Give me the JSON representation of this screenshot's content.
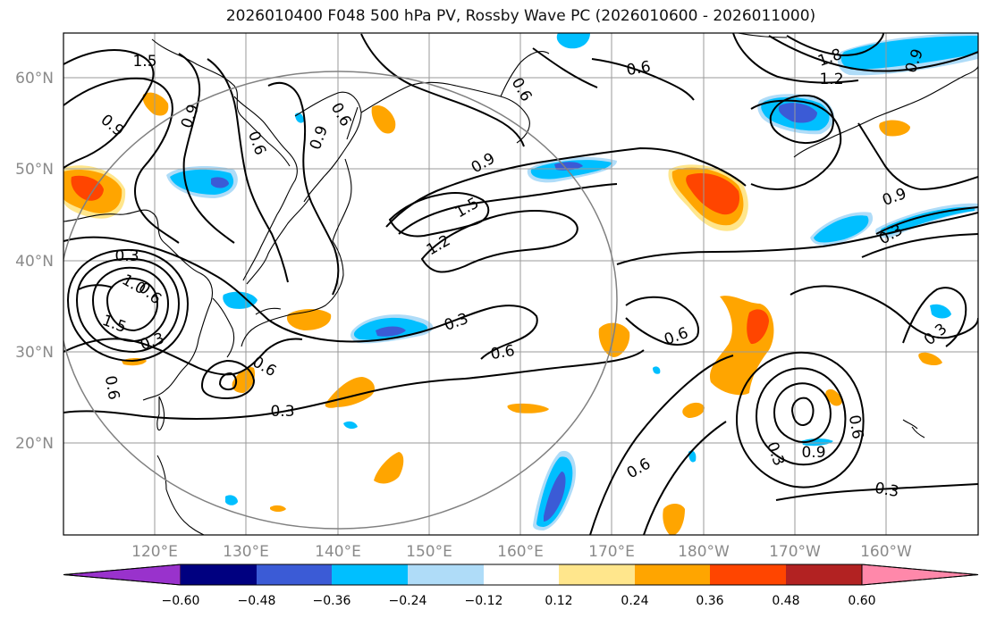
{
  "title": "2026010400 F048 500 hPa PV, Rossby Wave PC (2026010600 - 2026011000)",
  "colors": {
    "coast": "#000000",
    "grid": "#9a9a9a",
    "contour": "#000000",
    "circle": "#808080"
  },
  "map": {
    "lon_labels": [
      "120°E",
      "130°E",
      "140°E",
      "150°E",
      "160°E",
      "170°E",
      "180°W",
      "170°W",
      "160°W"
    ],
    "lat_labels": [
      "60°N",
      "50°N",
      "40°N",
      "30°N",
      "20°N"
    ]
  },
  "contour_labels": [
    {
      "text": "1.5"
    },
    {
      "text": "0.9"
    },
    {
      "text": "0.9"
    },
    {
      "text": "0.6"
    },
    {
      "text": "0.6"
    },
    {
      "text": "0.9"
    },
    {
      "text": "0.6"
    },
    {
      "text": "0.6"
    },
    {
      "text": "0.9"
    },
    {
      "text": "1.5"
    },
    {
      "text": "1.2"
    },
    {
      "text": "0.3"
    },
    {
      "text": "1.0"
    },
    {
      "text": "0.6"
    },
    {
      "text": "1.5"
    },
    {
      "text": "0.3"
    },
    {
      "text": "0.6"
    },
    {
      "text": "0.6"
    },
    {
      "text": "0.3"
    },
    {
      "text": "0.3"
    },
    {
      "text": "0.6"
    },
    {
      "text": "0.6"
    },
    {
      "text": "0.9"
    },
    {
      "text": "0.3"
    },
    {
      "text": "0.3"
    },
    {
      "text": "0.9"
    },
    {
      "text": "0.6"
    },
    {
      "text": "0.3"
    },
    {
      "text": "0.3"
    },
    {
      "text": "0.6"
    },
    {
      "text": "1.8"
    },
    {
      "text": "1.2"
    },
    {
      "text": "0.9"
    }
  ],
  "colorbar": {
    "colors": [
      "#9932cc",
      "#000080",
      "#3b5bd6",
      "#00bfff",
      "#afdcf8",
      "#ffffff",
      "#ffe68c",
      "#ffa500",
      "#ff4500",
      "#b22222",
      "#ff88aa"
    ],
    "labels": [
      "−0.60",
      "−0.48",
      "−0.36",
      "−0.24",
      "−0.12",
      "0.12",
      "0.24",
      "0.36",
      "0.48",
      "0.60"
    ]
  }
}
